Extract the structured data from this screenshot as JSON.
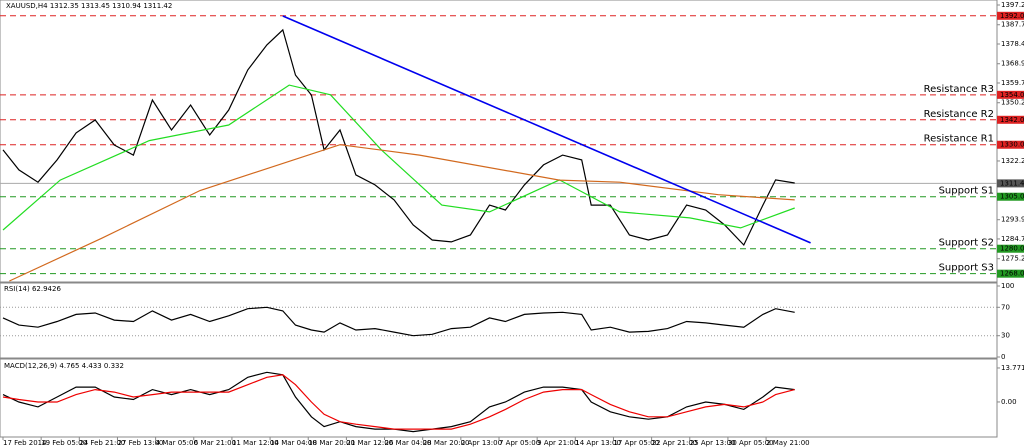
{
  "chart_data": [
    {
      "type": "line",
      "title": "XAUUSD,H4 1312.35 1313.45 1310.94 1311.42",
      "xlim": [
        0,
        312
      ],
      "ylim": [
        1264,
        1399.6
      ],
      "yticks": [
        {
          "value": 1397.2,
          "label": "1397.20"
        },
        {
          "value": 1387.7,
          "label": "1387.70"
        },
        {
          "value": 1378.45,
          "label": "1378.45"
        },
        {
          "value": 1368.95,
          "label": "1368.95"
        },
        {
          "value": 1359.7,
          "label": "1359.70"
        },
        {
          "value": 1350.2,
          "label": "1350.20"
        },
        {
          "value": 1322.2,
          "label": "1322.20"
        },
        {
          "value": 1293.95,
          "label": "1293.95"
        },
        {
          "value": 1284.7,
          "label": "1284.70"
        },
        {
          "value": 1275.2,
          "label": "1275.20"
        }
      ],
      "series": [
        {
          "color": "#000000",
          "x": [
            0,
            5,
            11,
            17,
            23,
            29,
            35,
            41,
            47,
            53,
            59,
            65,
            71,
            77,
            83,
            88,
            92,
            97,
            101,
            106,
            111,
            117,
            123,
            129,
            135,
            141,
            147,
            153,
            158,
            164,
            170,
            176,
            182,
            185,
            191,
            197,
            203,
            209,
            215,
            221,
            227,
            233,
            239,
            243,
            249
          ],
          "values": [
            1327.5,
            1317.9,
            1312,
            1322.7,
            1335.7,
            1341.9,
            1329.9,
            1325,
            1351.5,
            1337.1,
            1349.1,
            1334.7,
            1346.7,
            1366,
            1378,
            1385.2,
            1363.5,
            1353.9,
            1327.5,
            1337.1,
            1315.5,
            1310.7,
            1303.5,
            1291.4,
            1284.2,
            1283.3,
            1286.6,
            1301,
            1298.6,
            1310.7,
            1320.3,
            1325,
            1322.7,
            1301,
            1301,
            1286.6,
            1284.2,
            1286.6,
            1301,
            1298.6,
            1291.4,
            1281.8,
            1301,
            1313.1,
            1311.6
          ]
        },
        {
          "color": "#22dd22",
          "x": [
            0,
            18,
            46,
            71,
            90,
            103,
            119,
            138,
            153,
            175,
            194,
            216,
            232,
            249
          ],
          "values": [
            1289,
            1313,
            1332,
            1339.5,
            1358.7,
            1354,
            1327.5,
            1301,
            1297.7,
            1313.1,
            1297.7,
            1294.8,
            1290,
            1299.6
          ]
        },
        {
          "color": "#d2691e",
          "x": [
            2,
            31,
            62,
            106,
            131,
            175,
            194,
            225,
            249
          ],
          "values": [
            1264.5,
            1285,
            1308,
            1330,
            1325,
            1313,
            1312,
            1306,
            1303.5
          ]
        }
      ],
      "trendline": {
        "color": "#0000ee",
        "x": [
          88,
          254
        ],
        "values": [
          1391.9,
          1282.8
        ]
      },
      "levels": [
        {
          "value": 1392,
          "value_label": "1392.00",
          "color": "#dd2222"
        },
        {
          "label": "Resistance R3",
          "value": 1354,
          "value_label": "1354.00",
          "color": "#dd2222"
        },
        {
          "label": "Resistance R2",
          "value": 1342,
          "value_label": "1342.00",
          "color": "#dd2222"
        },
        {
          "label": "Resistance R1",
          "value": 1330,
          "value_label": "1330.00",
          "color": "#dd2222"
        },
        {
          "label": "Support S1",
          "value": 1305,
          "value_label": "1305.00",
          "color": "#229922"
        },
        {
          "label": "Support S2",
          "value": 1280,
          "value_label": "1280.00",
          "color": "#229922"
        },
        {
          "label": "Support S3",
          "value": 1268,
          "value_label": "1268.00",
          "color": "#229922"
        }
      ],
      "current": {
        "value": 1311.42,
        "label": "1311.42"
      }
    },
    {
      "type": "line",
      "title": "RSI(14) 62.9426",
      "xlim": [
        0,
        312
      ],
      "ylim": [
        0,
        100
      ],
      "yticks": [
        100,
        70,
        30,
        0
      ],
      "series": [
        {
          "color": "#000000",
          "x": [
            0,
            5,
            11,
            17,
            23,
            29,
            35,
            41,
            47,
            53,
            59,
            65,
            71,
            77,
            83,
            88,
            92,
            97,
            101,
            106,
            111,
            117,
            123,
            129,
            135,
            141,
            147,
            153,
            158,
            164,
            170,
            176,
            182,
            185,
            191,
            197,
            203,
            209,
            215,
            221,
            227,
            233,
            239,
            243,
            249
          ],
          "values": [
            55,
            45,
            42,
            50,
            60,
            62,
            52,
            50,
            65,
            52,
            60,
            50,
            58,
            68,
            70,
            65,
            45,
            38,
            35,
            48,
            38,
            40,
            35,
            30,
            32,
            40,
            42,
            55,
            50,
            60,
            62,
            63,
            60,
            38,
            42,
            35,
            36,
            40,
            50,
            48,
            45,
            42,
            60,
            68,
            63
          ]
        }
      ]
    },
    {
      "type": "line",
      "title": "MACD(12,26,9) 4.765 4.433 0.332",
      "xlim": [
        0,
        312
      ],
      "ylim": [
        -14.2,
        17
      ],
      "yticks": [
        {
          "value": 13.771,
          "label": "13.771"
        },
        {
          "value": 0,
          "label": "0.00"
        }
      ],
      "xticks": [
        {
          "value": 0,
          "label": "17 Feb 2014"
        },
        {
          "value": 12,
          "label": "19 Feb 05:00"
        },
        {
          "value": 24,
          "label": "24 Feb 21:00"
        },
        {
          "value": 36,
          "label": "27 Feb 13:00"
        },
        {
          "value": 48,
          "label": "4 Mar 05:00"
        },
        {
          "value": 60,
          "label": "6 Mar 21:00"
        },
        {
          "value": 72,
          "label": "11 Mar 12:00"
        },
        {
          "value": 84,
          "label": "14 Mar 04:00"
        },
        {
          "value": 96,
          "label": "18 Mar 20:00"
        },
        {
          "value": 108,
          "label": "21 Mar 12:00"
        },
        {
          "value": 120,
          "label": "26 Mar 04:00"
        },
        {
          "value": 132,
          "label": "28 Mar 20:00"
        },
        {
          "value": 144,
          "label": "2 Apr 13:00"
        },
        {
          "value": 156,
          "label": "7 Apr 05:00"
        },
        {
          "value": 168,
          "label": "9 Apr 21:00"
        },
        {
          "value": 180,
          "label": "14 Apr 13:00"
        },
        {
          "value": 192,
          "label": "17 Apr 05:00"
        },
        {
          "value": 204,
          "label": "22 Apr 21:00"
        },
        {
          "value": 216,
          "label": "25 Apr 13:00"
        },
        {
          "value": 228,
          "label": "30 Apr 05:00"
        },
        {
          "value": 240,
          "label": "2 May 21:00"
        }
      ],
      "series": [
        {
          "color": "#000000",
          "x": [
            0,
            5,
            11,
            17,
            23,
            29,
            35,
            41,
            47,
            53,
            59,
            65,
            71,
            77,
            83,
            88,
            92,
            97,
            101,
            106,
            111,
            117,
            123,
            129,
            135,
            141,
            147,
            153,
            158,
            164,
            170,
            176,
            182,
            185,
            191,
            197,
            203,
            209,
            215,
            221,
            227,
            233,
            239,
            243,
            249
          ],
          "values": [
            3,
            0,
            -2,
            2,
            6,
            6,
            2,
            1,
            5,
            3,
            5,
            3,
            5,
            10,
            12,
            11,
            2,
            -6,
            -10,
            -8,
            -10,
            -11,
            -11,
            -12,
            -11,
            -10,
            -8,
            -2,
            0,
            4,
            6,
            6,
            5,
            0,
            -4,
            -6,
            -7,
            -6,
            -2,
            0,
            -1,
            -3,
            2,
            6,
            5
          ]
        },
        {
          "color": "#ee0000",
          "x": [
            0,
            5,
            11,
            17,
            23,
            29,
            35,
            41,
            47,
            53,
            59,
            65,
            71,
            77,
            83,
            88,
            92,
            97,
            101,
            106,
            111,
            117,
            123,
            129,
            135,
            141,
            147,
            153,
            158,
            164,
            170,
            176,
            182,
            185,
            191,
            197,
            203,
            209,
            215,
            221,
            227,
            233,
            239,
            243,
            249
          ],
          "values": [
            2,
            1,
            0,
            0,
            3,
            5,
            4,
            2,
            3,
            4,
            4,
            4,
            4,
            7,
            10,
            11,
            7,
            0,
            -5,
            -8,
            -9,
            -10,
            -11,
            -11,
            -11,
            -11,
            -9,
            -6,
            -3,
            1,
            4,
            5,
            5,
            3,
            -1,
            -4,
            -6,
            -6,
            -4,
            -2,
            -1,
            -2,
            0,
            3,
            5
          ]
        }
      ]
    }
  ]
}
